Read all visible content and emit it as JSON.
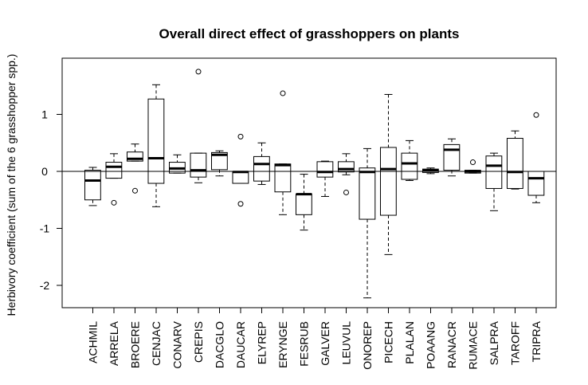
{
  "chart_data": {
    "type": "boxplot",
    "title": "Overall direct effect of grasshoppers on plants",
    "xlabel": "",
    "ylabel": "Herbivory coefficient (sum of the 6 grasshopper spp.)",
    "ylim": [
      -2.4,
      1.9
    ],
    "yticks": [
      -2,
      -1,
      0,
      1
    ],
    "ytick_labels": [
      "-2",
      "-1",
      "0",
      "1"
    ],
    "reference_line_y": 0,
    "grid": false,
    "categories": [
      "ACHMIL",
      "ARRELA",
      "BROERE",
      "CENJAC",
      "CONARV",
      "CREPIS",
      "DACGLO",
      "DAUCAR",
      "ELYREP",
      "ERYNGE",
      "FESRUB",
      "GALVER",
      "LEUVUL",
      "ONOREP",
      "PICECH",
      "PLALAN",
      "POAANG",
      "RANACR",
      "RUMACE",
      "SALPRA",
      "TAROFF",
      "TRIPRA"
    ],
    "boxes": [
      {
        "min": -0.6,
        "q1": -0.5,
        "median": -0.16,
        "q3": 0.02,
        "max": 0.07,
        "outliers": []
      },
      {
        "min": -0.12,
        "q1": -0.12,
        "median": 0.08,
        "q3": 0.16,
        "max": 0.31,
        "outliers": [
          -0.55
        ]
      },
      {
        "min": 0.18,
        "q1": 0.18,
        "median": 0.22,
        "q3": 0.34,
        "max": 0.48,
        "outliers": [
          -0.34
        ]
      },
      {
        "min": -0.62,
        "q1": -0.21,
        "median": 0.23,
        "q3": 1.27,
        "max": 1.52,
        "outliers": []
      },
      {
        "min": -0.03,
        "q1": -0.03,
        "median": 0.05,
        "q3": 0.16,
        "max": 0.29,
        "outliers": []
      },
      {
        "min": -0.2,
        "q1": -0.1,
        "median": 0.02,
        "q3": 0.32,
        "max": 0.32,
        "outliers": [
          1.75
        ]
      },
      {
        "min": -0.08,
        "q1": 0.03,
        "median": 0.29,
        "q3": 0.33,
        "max": 0.36,
        "outliers": []
      },
      {
        "min": -0.21,
        "q1": -0.21,
        "median": -0.01,
        "q3": -0.01,
        "max": -0.01,
        "outliers": [
          0.61,
          -0.57
        ]
      },
      {
        "min": -0.23,
        "q1": -0.17,
        "median": 0.13,
        "q3": 0.26,
        "max": 0.5,
        "outliers": []
      },
      {
        "min": -0.76,
        "q1": -0.36,
        "median": 0.11,
        "q3": 0.13,
        "max": 0.13,
        "outliers": [
          1.37
        ]
      },
      {
        "min": -1.03,
        "q1": -0.76,
        "median": -0.4,
        "q3": -0.4,
        "max": -0.05,
        "outliers": []
      },
      {
        "min": -0.44,
        "q1": -0.1,
        "median": -0.01,
        "q3": 0.17,
        "max": 0.18,
        "outliers": []
      },
      {
        "min": -0.06,
        "q1": -0.01,
        "median": 0.04,
        "q3": 0.17,
        "max": 0.31,
        "outliers": [
          -0.37
        ]
      },
      {
        "min": -2.22,
        "q1": -0.84,
        "median": -0.01,
        "q3": 0.06,
        "max": 0.4,
        "outliers": []
      },
      {
        "min": -1.46,
        "q1": -0.77,
        "median": 0.04,
        "q3": 0.42,
        "max": 1.35,
        "outliers": []
      },
      {
        "min": -0.16,
        "q1": -0.14,
        "median": 0.14,
        "q3": 0.32,
        "max": 0.54,
        "outliers": []
      },
      {
        "min": -0.04,
        "q1": -0.02,
        "median": 0.02,
        "q3": 0.04,
        "max": 0.06,
        "outliers": []
      },
      {
        "min": -0.08,
        "q1": 0.02,
        "median": 0.38,
        "q3": 0.47,
        "max": 0.57,
        "outliers": []
      },
      {
        "min": -0.03,
        "q1": -0.03,
        "median": 0.0,
        "q3": 0.02,
        "max": 0.02,
        "outliers": [
          0.16
        ]
      },
      {
        "min": -0.69,
        "q1": -0.3,
        "median": 0.1,
        "q3": 0.27,
        "max": 0.32,
        "outliers": []
      },
      {
        "min": -0.31,
        "q1": -0.3,
        "median": -0.01,
        "q3": 0.58,
        "max": 0.71,
        "outliers": []
      },
      {
        "min": -0.55,
        "q1": -0.42,
        "median": -0.12,
        "q3": 0.0,
        "max": 0.0,
        "outliers": [
          0.99
        ]
      }
    ]
  }
}
